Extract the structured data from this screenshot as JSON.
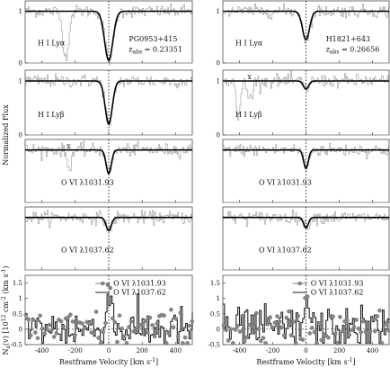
{
  "figure": {
    "ylabel_top": "Normalized Flux",
    "ylabel_bottom": "N",
    "ylabel_bottom_sub": "a",
    "ylabel_bottom_rest": "(v) [10",
    "ylabel_bottom_exp": "12",
    "ylabel_bottom_units": " cm",
    "ylabel_bottom_exp2": "-2",
    "ylabel_bottom_units2": " (km s",
    "ylabel_bottom_exp3": "-1",
    "ylabel_bottom_end": ")",
    "left_ylabel": "Normalized Flux"
  },
  "chart_data": [
    {
      "type": "line",
      "target": "PG0953+415",
      "z_label": "z",
      "z_sub": "abs",
      "z_value": "= 0.23351",
      "xlabel": "Restframe Velocity [km s",
      "xlabel_exp": "-1",
      "xlabel_end": "]",
      "xlim": [
        -500,
        500
      ],
      "x_ticks": [
        "-400",
        "-200",
        "0",
        "200",
        "400"
      ],
      "x_tick_values": [
        -400,
        -200,
        0,
        200,
        400
      ],
      "flux_panels": [
        {
          "line": "H I Lyα",
          "ylim": [
            0,
            1.2
          ],
          "y_ticks": [
            "0",
            "1"
          ],
          "y_tick_values": [
            0,
            1
          ],
          "model": {
            "center": 0,
            "depth": 0.95,
            "width": 35
          },
          "marker": null
        },
        {
          "line": "H I Lyβ",
          "ylim": [
            0,
            1.2
          ],
          "y_ticks": [
            "0",
            "1"
          ],
          "y_tick_values": [
            0,
            1
          ],
          "model": {
            "center": 0,
            "depth": 0.8,
            "width": 30
          },
          "marker": null
        },
        {
          "line": "O VI λ1031.93",
          "ylim": [
            0,
            1.2
          ],
          "y_ticks": [],
          "y_tick_values": [],
          "model": {
            "center": 0,
            "depth": 0.45,
            "width": 22
          },
          "marker": {
            "text": "x",
            "x": -240
          }
        },
        {
          "line": "O VI λ1037.62",
          "ylim": [
            0,
            1.2
          ],
          "y_ticks": [],
          "y_tick_values": [],
          "model": {
            "center": 0,
            "depth": 0.25,
            "width": 22
          },
          "marker": null
        }
      ],
      "aod_panel": {
        "ylim": [
          -0.5,
          1.75
        ],
        "y_ticks": [
          "-0.5",
          "0",
          "0.5",
          "1",
          "1.5"
        ],
        "y_tick_values": [
          -0.5,
          0,
          0.5,
          1,
          1.5
        ],
        "series": [
          {
            "name": "O VI λ1031.93",
            "style": "markers"
          },
          {
            "name": "O VI λ1037.62",
            "style": "histogram"
          }
        ],
        "peak": 1.5
      }
    },
    {
      "type": "line",
      "target": "H1821+643",
      "z_label": "z",
      "z_sub": "abs",
      "z_value": "= 0.26656",
      "xlabel": "Restframe Velocity [km s",
      "xlabel_exp": "-1",
      "xlabel_end": "]",
      "xlim": [
        -500,
        500
      ],
      "x_ticks": [
        "-400",
        "-200",
        "0",
        "200",
        "400"
      ],
      "x_tick_values": [
        -400,
        -200,
        0,
        200,
        400
      ],
      "flux_panels": [
        {
          "line": "H I Lyα",
          "ylim": [
            0,
            1.2
          ],
          "y_ticks": [
            "0",
            "1"
          ],
          "y_tick_values": [
            0,
            1
          ],
          "model": {
            "center": 0,
            "depth": 0.55,
            "width": 30
          },
          "marker": null
        },
        {
          "line": "H I Lyβ",
          "ylim": [
            0,
            1.2
          ],
          "y_ticks": [
            "0",
            "1"
          ],
          "y_tick_values": [
            0,
            1
          ],
          "model": {
            "center": 0,
            "depth": 0.15,
            "width": 22
          },
          "marker": {
            "text": "x",
            "x": -340
          }
        },
        {
          "line": "O VI λ1031.93",
          "ylim": [
            0,
            1.2
          ],
          "y_ticks": [],
          "y_tick_values": [],
          "model": {
            "center": 0,
            "depth": 0.35,
            "width": 20
          },
          "marker": null
        },
        {
          "line": "O VI λ1037.62",
          "ylim": [
            0,
            1.2
          ],
          "y_ticks": [],
          "y_tick_values": [],
          "model": {
            "center": 0,
            "depth": 0.2,
            "width": 20
          },
          "marker": null
        }
      ],
      "aod_panel": {
        "ylim": [
          -0.5,
          1.75
        ],
        "y_ticks": [
          "-0.5",
          "0",
          "0.5",
          "1",
          "1.5"
        ],
        "y_tick_values": [
          -0.5,
          0,
          0.5,
          1,
          1.5
        ],
        "series": [
          {
            "name": "O VI λ1031.93",
            "style": "markers"
          },
          {
            "name": "O VI λ1037.62",
            "style": "histogram"
          }
        ],
        "peak": 1.1
      }
    }
  ]
}
